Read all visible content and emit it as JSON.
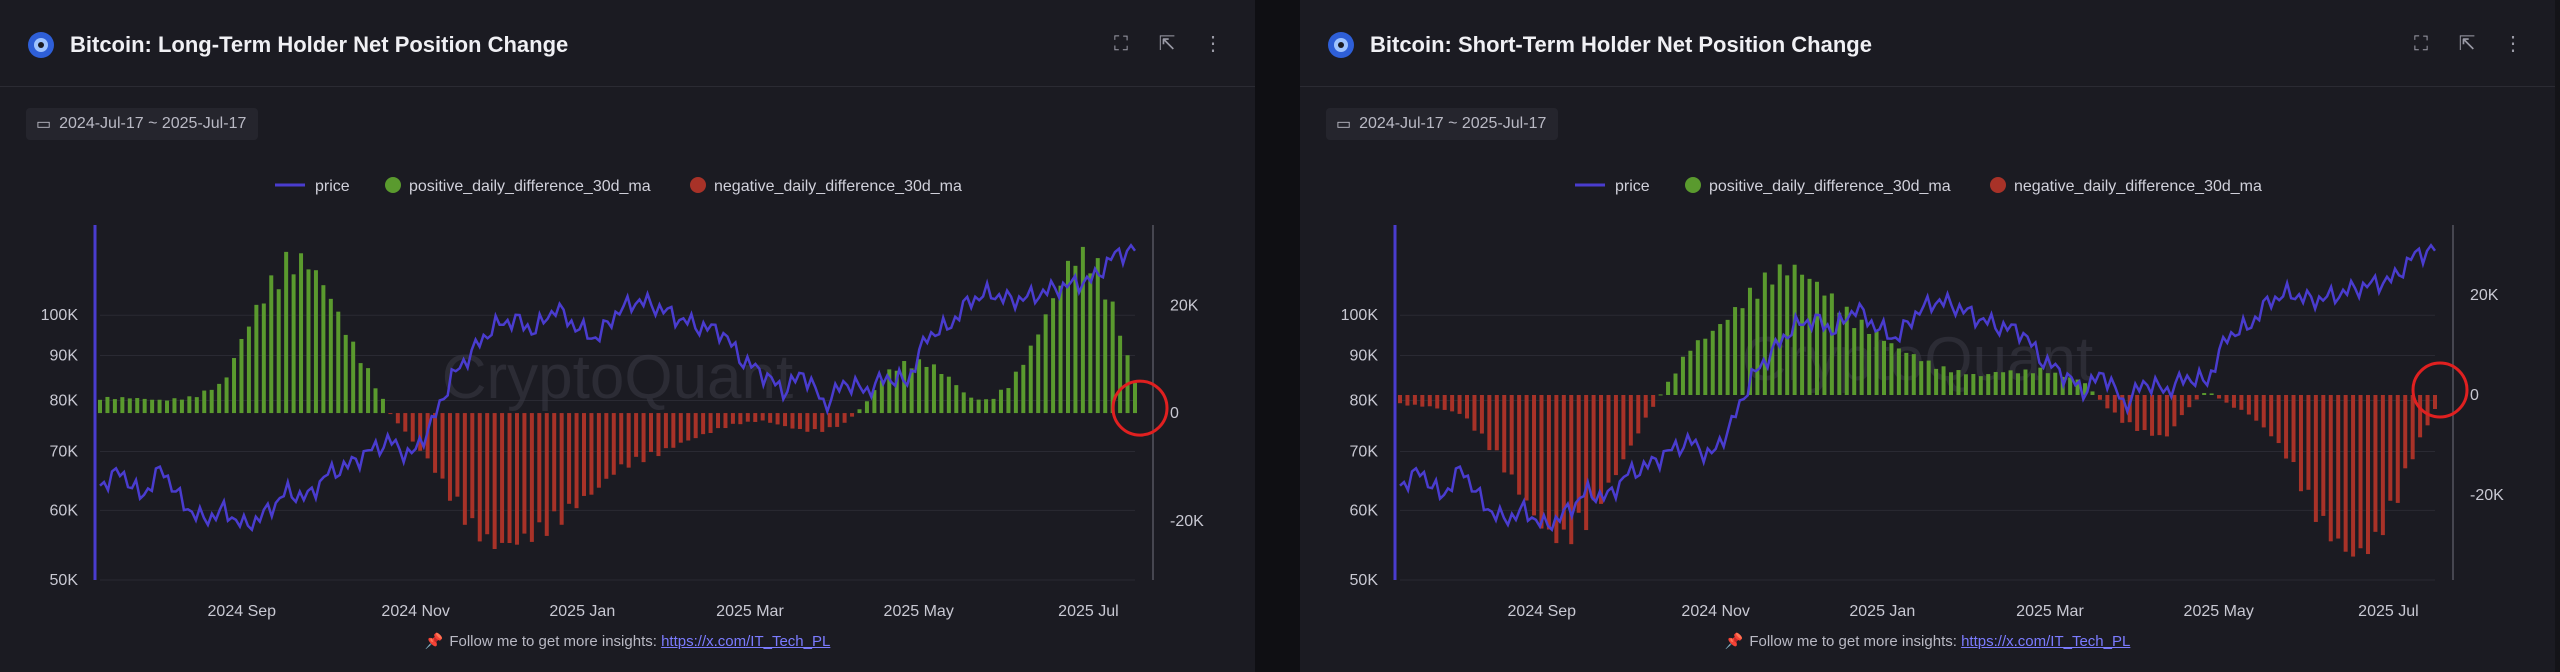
{
  "panels": [
    {
      "title": "Bitcoin: Long-Term Holder Net Position Change",
      "date_range": "2024-Jul-17 ~ 2025-Jul-17",
      "footer_text": "Follow me to get more insights:",
      "footer_link": "https://x.com/IT_Tech_PL"
    },
    {
      "title": "Bitcoin: Short-Term Holder Net Position Change",
      "date_range": "2024-Jul-17 ~ 2025-Jul-17",
      "footer_text": "Follow me to get more insights:",
      "footer_link": "https://x.com/IT_Tech_PL"
    }
  ],
  "header_icons": [
    "expand-icon",
    "share-icon",
    "more-icon"
  ],
  "colors": {
    "price": "#4a3ccf",
    "positive": "#5a9a2e",
    "negative": "#a83228",
    "highlight": "#e02020"
  },
  "chart_data": [
    {
      "type": "bar",
      "watermark": "CryptoQuant",
      "legend": [
        "price",
        "positive_daily_difference_30d_ma",
        "negative_daily_difference_30d_ma"
      ],
      "x_ticks": [
        {
          "t": 0.137,
          "label": "2024 Sep"
        },
        {
          "t": 0.305,
          "label": "2024 Nov"
        },
        {
          "t": 0.466,
          "label": "2025 Jan"
        },
        {
          "t": 0.628,
          "label": "2025 Mar"
        },
        {
          "t": 0.791,
          "label": "2025 May"
        },
        {
          "t": 0.955,
          "label": "2025 Jul"
        }
      ],
      "price_axis": {
        "scale": "log",
        "min": 50000,
        "max": 125000,
        "ticks": [
          {
            "v": 50000,
            "label": "50K"
          },
          {
            "v": 60000,
            "label": "60K"
          },
          {
            "v": 70000,
            "label": "70K"
          },
          {
            "v": 80000,
            "label": "80K"
          },
          {
            "v": 90000,
            "label": "90K"
          },
          {
            "v": 100000,
            "label": "100K"
          }
        ]
      },
      "net_axis": {
        "min": -31000,
        "max": 34000,
        "ticks": [
          {
            "v": 20000,
            "label": "20K"
          },
          {
            "v": 0,
            "label": "0"
          },
          {
            "v": -20000,
            "label": "-20K"
          }
        ]
      },
      "price": [
        [
          0,
          64000
        ],
        [
          0.02,
          66500
        ],
        [
          0.04,
          62000
        ],
        [
          0.06,
          67000
        ],
        [
          0.08,
          61000
        ],
        [
          0.1,
          58500
        ],
        [
          0.12,
          60000
        ],
        [
          0.14,
          57500
        ],
        [
          0.16,
          59500
        ],
        [
          0.18,
          63000
        ],
        [
          0.2,
          62000
        ],
        [
          0.22,
          66000
        ],
        [
          0.24,
          67500
        ],
        [
          0.26,
          70000
        ],
        [
          0.28,
          72000
        ],
        [
          0.3,
          69000
        ],
        [
          0.32,
          75000
        ],
        [
          0.34,
          85000
        ],
        [
          0.36,
          91000
        ],
        [
          0.38,
          97000
        ],
        [
          0.4,
          99000
        ],
        [
          0.42,
          96000
        ],
        [
          0.44,
          102000
        ],
        [
          0.46,
          97000
        ],
        [
          0.48,
          94000
        ],
        [
          0.5,
          101000
        ],
        [
          0.52,
          104000
        ],
        [
          0.54,
          102000
        ],
        [
          0.56,
          99000
        ],
        [
          0.58,
          97000
        ],
        [
          0.6,
          96000
        ],
        [
          0.62,
          89000
        ],
        [
          0.64,
          86000
        ],
        [
          0.66,
          82000
        ],
        [
          0.68,
          86000
        ],
        [
          0.7,
          79000
        ],
        [
          0.72,
          84000
        ],
        [
          0.74,
          82000
        ],
        [
          0.76,
          85000
        ],
        [
          0.78,
          84000
        ],
        [
          0.8,
          95000
        ],
        [
          0.82,
          97000
        ],
        [
          0.84,
          104000
        ],
        [
          0.86,
          106000
        ],
        [
          0.88,
          104000
        ],
        [
          0.9,
          105000
        ],
        [
          0.92,
          107000
        ],
        [
          0.94,
          108500
        ],
        [
          0.96,
          110000
        ],
        [
          0.98,
          117000
        ],
        [
          1.0,
          119000
        ]
      ],
      "net": [
        [
          0,
          3000
        ],
        [
          0.03,
          3000
        ],
        [
          0.06,
          2500
        ],
        [
          0.09,
          3200
        ],
        [
          0.12,
          6000
        ],
        [
          0.14,
          16000
        ],
        [
          0.16,
          24000
        ],
        [
          0.18,
          30000
        ],
        [
          0.2,
          30000
        ],
        [
          0.22,
          24000
        ],
        [
          0.24,
          15000
        ],
        [
          0.26,
          8000
        ],
        [
          0.28,
          0
        ],
        [
          0.3,
          -5000
        ],
        [
          0.32,
          -10000
        ],
        [
          0.34,
          -17000
        ],
        [
          0.36,
          -23000
        ],
        [
          0.38,
          -26000
        ],
        [
          0.4,
          -25500
        ],
        [
          0.42,
          -24000
        ],
        [
          0.44,
          -22000
        ],
        [
          0.46,
          -18000
        ],
        [
          0.48,
          -15000
        ],
        [
          0.5,
          -11000
        ],
        [
          0.52,
          -9500
        ],
        [
          0.54,
          -8000
        ],
        [
          0.56,
          -6000
        ],
        [
          0.58,
          -4500
        ],
        [
          0.6,
          -3000
        ],
        [
          0.62,
          -2000
        ],
        [
          0.64,
          -1500
        ],
        [
          0.66,
          -2500
        ],
        [
          0.68,
          -3500
        ],
        [
          0.7,
          -3500
        ],
        [
          0.72,
          -2000
        ],
        [
          0.74,
          2000
        ],
        [
          0.76,
          8000
        ],
        [
          0.78,
          10000
        ],
        [
          0.8,
          10000
        ],
        [
          0.82,
          7000
        ],
        [
          0.84,
          3000
        ],
        [
          0.86,
          2500
        ],
        [
          0.88,
          6000
        ],
        [
          0.9,
          13000
        ],
        [
          0.92,
          22000
        ],
        [
          0.94,
          31000
        ],
        [
          0.96,
          31000
        ],
        [
          0.98,
          20000
        ],
        [
          1.0,
          6000
        ]
      ]
    },
    {
      "type": "bar",
      "watermark": "CryptoQuant",
      "legend": [
        "price",
        "positive_daily_difference_30d_ma",
        "negative_daily_difference_30d_ma"
      ],
      "x_ticks": [
        {
          "t": 0.137,
          "label": "2024 Sep"
        },
        {
          "t": 0.305,
          "label": "2024 Nov"
        },
        {
          "t": 0.466,
          "label": "2025 Jan"
        },
        {
          "t": 0.628,
          "label": "2025 Mar"
        },
        {
          "t": 0.791,
          "label": "2025 May"
        },
        {
          "t": 0.955,
          "label": "2025 Jul"
        }
      ],
      "price_axis": {
        "scale": "log",
        "min": 50000,
        "max": 125000,
        "ticks": [
          {
            "v": 50000,
            "label": "50K"
          },
          {
            "v": 60000,
            "label": "60K"
          },
          {
            "v": 70000,
            "label": "70K"
          },
          {
            "v": 80000,
            "label": "80K"
          },
          {
            "v": 90000,
            "label": "90K"
          },
          {
            "v": 100000,
            "label": "100K"
          }
        ]
      },
      "net_axis": {
        "min": -37000,
        "max": 33000,
        "ticks": [
          {
            "v": 20000,
            "label": "20K"
          },
          {
            "v": 0,
            "label": "0"
          },
          {
            "v": -20000,
            "label": "-20K"
          }
        ]
      },
      "price": [
        [
          0,
          64000
        ],
        [
          0.02,
          66500
        ],
        [
          0.04,
          62000
        ],
        [
          0.06,
          67000
        ],
        [
          0.08,
          61000
        ],
        [
          0.1,
          58500
        ],
        [
          0.12,
          60000
        ],
        [
          0.14,
          57500
        ],
        [
          0.16,
          59500
        ],
        [
          0.18,
          63000
        ],
        [
          0.2,
          62000
        ],
        [
          0.22,
          66000
        ],
        [
          0.24,
          67500
        ],
        [
          0.26,
          70000
        ],
        [
          0.28,
          72000
        ],
        [
          0.3,
          69000
        ],
        [
          0.32,
          75000
        ],
        [
          0.34,
          85000
        ],
        [
          0.36,
          91000
        ],
        [
          0.38,
          97000
        ],
        [
          0.4,
          99000
        ],
        [
          0.42,
          96000
        ],
        [
          0.44,
          102000
        ],
        [
          0.46,
          97000
        ],
        [
          0.48,
          94000
        ],
        [
          0.5,
          101000
        ],
        [
          0.52,
          104000
        ],
        [
          0.54,
          102000
        ],
        [
          0.56,
          99000
        ],
        [
          0.58,
          97000
        ],
        [
          0.6,
          96000
        ],
        [
          0.62,
          89000
        ],
        [
          0.64,
          86000
        ],
        [
          0.66,
          82000
        ],
        [
          0.68,
          86000
        ],
        [
          0.7,
          79000
        ],
        [
          0.72,
          84000
        ],
        [
          0.74,
          82000
        ],
        [
          0.76,
          85000
        ],
        [
          0.78,
          84000
        ],
        [
          0.8,
          95000
        ],
        [
          0.82,
          97000
        ],
        [
          0.84,
          104000
        ],
        [
          0.86,
          106000
        ],
        [
          0.88,
          104000
        ],
        [
          0.9,
          105000
        ],
        [
          0.92,
          107000
        ],
        [
          0.94,
          108500
        ],
        [
          0.96,
          110000
        ],
        [
          0.98,
          117000
        ],
        [
          1.0,
          119000
        ]
      ],
      "net": [
        [
          0,
          -2000
        ],
        [
          0.03,
          -2500
        ],
        [
          0.06,
          -4000
        ],
        [
          0.09,
          -12000
        ],
        [
          0.12,
          -22000
        ],
        [
          0.14,
          -29000
        ],
        [
          0.16,
          -31000
        ],
        [
          0.18,
          -27000
        ],
        [
          0.2,
          -20000
        ],
        [
          0.22,
          -12000
        ],
        [
          0.24,
          -4000
        ],
        [
          0.26,
          3000
        ],
        [
          0.28,
          10000
        ],
        [
          0.3,
          13000
        ],
        [
          0.32,
          17000
        ],
        [
          0.34,
          22000
        ],
        [
          0.36,
          26000
        ],
        [
          0.38,
          27000
        ],
        [
          0.4,
          24000
        ],
        [
          0.42,
          20000
        ],
        [
          0.44,
          16000
        ],
        [
          0.46,
          13000
        ],
        [
          0.48,
          10000
        ],
        [
          0.5,
          8000
        ],
        [
          0.52,
          6000
        ],
        [
          0.54,
          5000
        ],
        [
          0.56,
          4000
        ],
        [
          0.58,
          5000
        ],
        [
          0.6,
          5000
        ],
        [
          0.62,
          5500
        ],
        [
          0.64,
          4000
        ],
        [
          0.66,
          3000
        ],
        [
          0.68,
          -2000
        ],
        [
          0.7,
          -6000
        ],
        [
          0.72,
          -8000
        ],
        [
          0.74,
          -9000
        ],
        [
          0.76,
          -3000
        ],
        [
          0.78,
          1000
        ],
        [
          0.8,
          -2000
        ],
        [
          0.82,
          -4000
        ],
        [
          0.84,
          -8000
        ],
        [
          0.86,
          -14000
        ],
        [
          0.88,
          -24000
        ],
        [
          0.9,
          -30000
        ],
        [
          0.92,
          -34000
        ],
        [
          0.94,
          -32000
        ],
        [
          0.96,
          -24000
        ],
        [
          0.98,
          -12000
        ],
        [
          1.0,
          -3000
        ]
      ]
    }
  ]
}
